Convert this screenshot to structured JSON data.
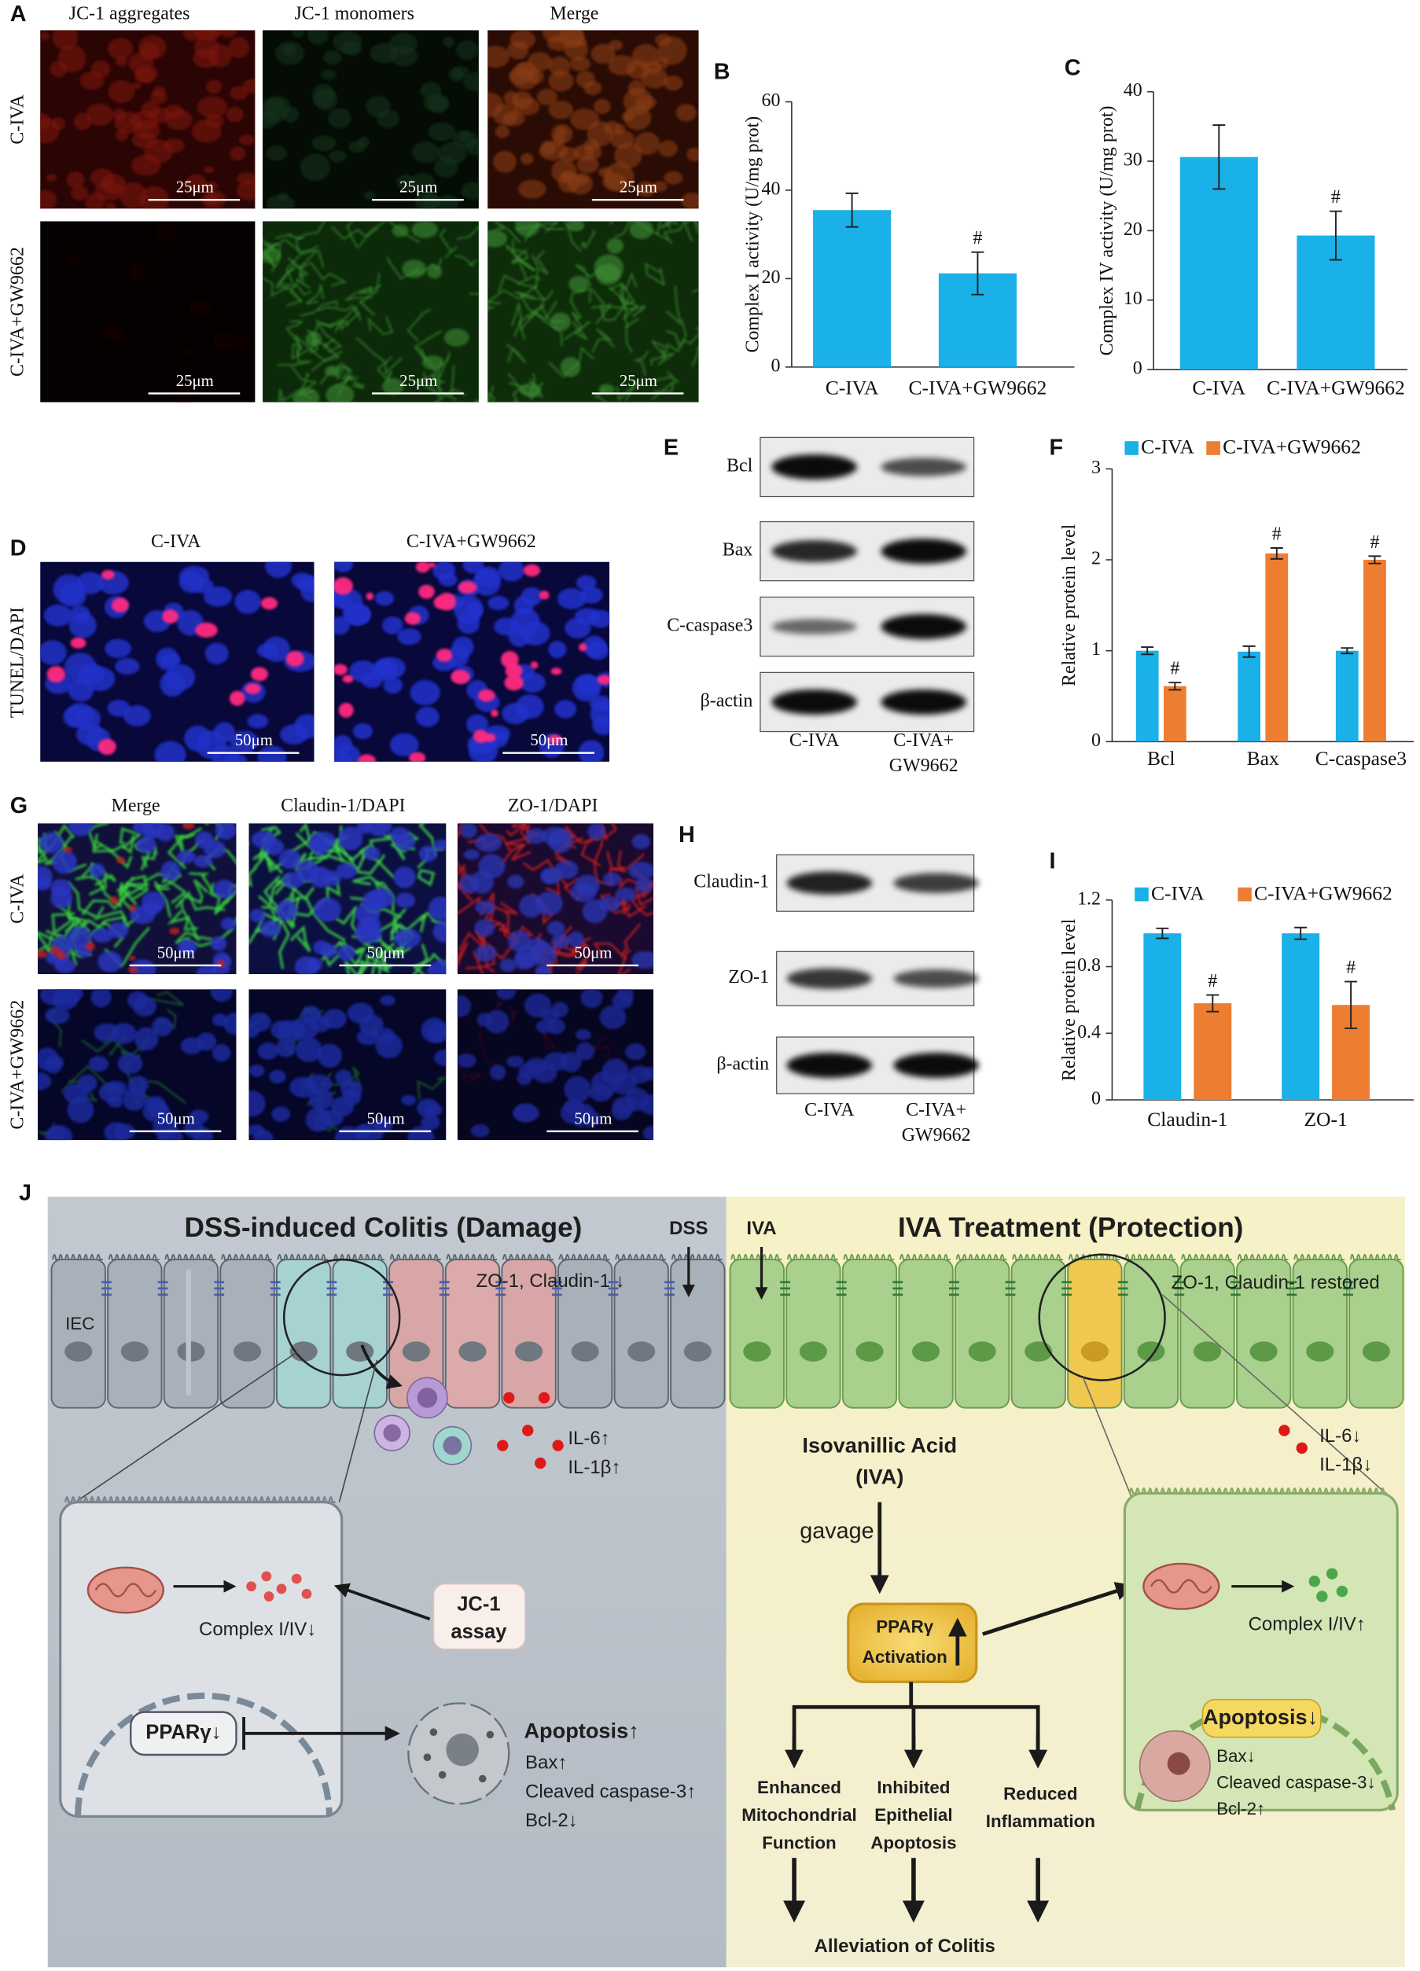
{
  "chart_data": [
    {
      "type": "bar",
      "panel": "B",
      "ylabel": "Complex I activity (U/mg prot)",
      "categories": [
        "C-IVA",
        "C-IVA+GW9662"
      ],
      "values": [
        35.5,
        21.2
      ],
      "errors": [
        3.8,
        4.8
      ],
      "significance": [
        null,
        "#"
      ],
      "color": "#1ab0e8",
      "ylim": [
        0,
        60
      ],
      "yticks": [
        0,
        20,
        40,
        60
      ]
    },
    {
      "type": "bar",
      "panel": "C",
      "ylabel": "Complex IV activity (U/mg prot)",
      "categories": [
        "C-IVA",
        "C-IVA+GW9662"
      ],
      "values": [
        30.6,
        19.3
      ],
      "errors": [
        4.6,
        3.5
      ],
      "significance": [
        null,
        "#"
      ],
      "color": "#1ab0e8",
      "ylim": [
        0,
        40
      ],
      "yticks": [
        0,
        10,
        20,
        30,
        40
      ]
    },
    {
      "type": "bar",
      "panel": "F",
      "ylabel": "Relative protein level",
      "categories": [
        "Bcl",
        "Bax",
        "C-caspase3"
      ],
      "series": [
        {
          "name": "C-IVA",
          "color": "#1ab0e8",
          "values": [
            1.0,
            0.99,
            1.0
          ],
          "errors": [
            0.04,
            0.06,
            0.03
          ]
        },
        {
          "name": "C-IVA+GW9662",
          "color": "#ed7d31",
          "values": [
            0.61,
            2.07,
            2.0
          ],
          "errors": [
            0.04,
            0.06,
            0.04
          ],
          "significance": [
            "#",
            "#",
            "#"
          ]
        }
      ],
      "ylim": [
        0,
        3
      ],
      "yticks": [
        0,
        1,
        2,
        3
      ],
      "legend": "top"
    },
    {
      "type": "bar",
      "panel": "I",
      "ylabel": "Relative protein level",
      "categories": [
        "Claudin-1",
        "ZO-1"
      ],
      "series": [
        {
          "name": "C-IVA",
          "color": "#1ab0e8",
          "values": [
            1.0,
            1.0
          ],
          "errors": [
            0.03,
            0.035
          ]
        },
        {
          "name": "C-IVA+GW9662",
          "color": "#ed7d31",
          "values": [
            0.58,
            0.57
          ],
          "errors": [
            0.05,
            0.14
          ],
          "significance": [
            "#",
            "#"
          ]
        }
      ],
      "ylim": [
        0,
        1.2
      ],
      "yticks": [
        0,
        0.4,
        0.8,
        1.2
      ],
      "legend": "top"
    }
  ],
  "panels": {
    "A": {
      "label": "A",
      "columns": [
        "JC-1 aggregates",
        "JC-1 monomers",
        "Merge"
      ],
      "rows": [
        "C-IVA",
        "C-IVA+GW9662"
      ],
      "scale_bars": [
        "25μm",
        "25μm",
        "25μm",
        "25μm",
        "25μm",
        "25μm"
      ]
    },
    "D": {
      "label": "D",
      "columns": [
        "C-IVA",
        "C-IVA+GW9662"
      ],
      "row": "TUNEL/DAPI",
      "scale_bars": [
        "50μm",
        "50μm"
      ]
    },
    "E": {
      "label": "E",
      "rows": [
        "Bcl",
        "Bax",
        "C-caspase3",
        "β-actin"
      ],
      "columns": [
        [
          "C-IVA"
        ],
        [
          "C-IVA+",
          "GW9662"
        ]
      ]
    },
    "G": {
      "label": "G",
      "columns": [
        "Merge",
        "Claudin-1/DAPI",
        "ZO-1/DAPI"
      ],
      "rows": [
        "C-IVA",
        "C-IVA+GW9662"
      ],
      "scale_bars": [
        "50μm",
        "50μm",
        "50μm",
        "50μm",
        "50μm",
        "50μm"
      ]
    },
    "H": {
      "label": "H",
      "rows": [
        "Claudin-1",
        "ZO-1",
        "β-actin"
      ],
      "columns": [
        [
          "C-IVA"
        ],
        [
          "C-IVA+",
          "GW9662"
        ]
      ]
    }
  },
  "diagram": {
    "label": "J",
    "texts": [
      [
        "DSS-induced Colitis (Damage)"
      ],
      [
        "DSS"
      ],
      [
        "ZO-1, Claudin-1 ↓"
      ],
      [
        "IEC"
      ],
      [
        "IL-6↑",
        "IL-1β↑"
      ],
      [
        "Complex I/IV↓"
      ],
      [
        "JC-1",
        "assay"
      ],
      [
        "PPARγ↓"
      ],
      [
        "Apoptosis↑"
      ],
      [
        "Bax↑",
        "Cleaved caspase-3↑",
        "Bcl-2↓"
      ],
      [
        "IVA Treatment (Protection)"
      ],
      [
        "IVA"
      ],
      [
        "ZO-1, Claudin-1 restored"
      ],
      [
        "Isovanillic Acid",
        "(IVA)"
      ],
      [
        "gavage"
      ],
      [
        "PPARγ",
        "Activation"
      ],
      [
        "IL-6↓",
        "IL-1β↓"
      ],
      [
        "Complex I/IV↑"
      ],
      [
        "Apoptosis↓"
      ],
      [
        "Bax↓",
        "Cleaved caspase-3↓",
        "Bcl-2↑"
      ],
      [
        "Enhanced",
        "Mitochondrial",
        "Function"
      ],
      [
        "Inhibited",
        "Epithelial",
        "Apoptosis"
      ],
      [
        "Reduced",
        "Inflammation"
      ],
      [
        "Alleviation of Colitis"
      ]
    ]
  }
}
